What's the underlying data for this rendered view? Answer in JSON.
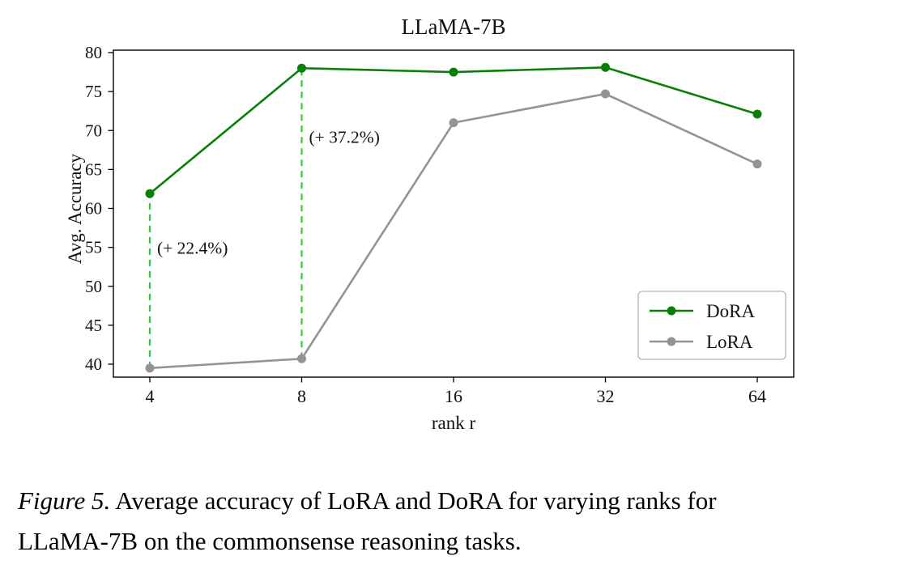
{
  "chart_data": {
    "type": "line",
    "title": "LLaMA-7B",
    "xlabel": "rank r",
    "ylabel": "Avg. Accuracy",
    "x": [
      4,
      8,
      16,
      32,
      64
    ],
    "x_scale": "log2-categorical",
    "yticks": [
      40,
      45,
      50,
      55,
      60,
      65,
      70,
      75,
      80
    ],
    "ylim": [
      38,
      80.5
    ],
    "grid": false,
    "legend_position": "center-right",
    "series": [
      {
        "name": "DoRA",
        "color": "#088008",
        "values": [
          61.9,
          78.0,
          77.5,
          78.1,
          72.1
        ]
      },
      {
        "name": "LoRA",
        "color": "#949494",
        "values": [
          39.5,
          40.7,
          71.0,
          74.7,
          65.7
        ]
      }
    ],
    "gap_lines": [
      {
        "x": 4,
        "from_series": "LoRA",
        "to_series": "DoRA",
        "style": "dashed",
        "color": "#32CD32"
      },
      {
        "x": 8,
        "from_series": "LoRA",
        "to_series": "DoRA",
        "style": "dashed",
        "color": "#32CD32"
      }
    ],
    "annotations": [
      {
        "text": "(+ 22.4%)",
        "at_x": 4,
        "label_y": 54.2,
        "color": "#32CD32"
      },
      {
        "text": "(+ 37.2%)",
        "at_x": 8,
        "label_y": 68.4,
        "color": "#32CD32"
      }
    ]
  },
  "caption": {
    "label": "Figure 5.",
    "text": " Average accuracy of LoRA and DoRA for varying ranks for LLaMA-7B on the commonsense reasoning tasks."
  }
}
